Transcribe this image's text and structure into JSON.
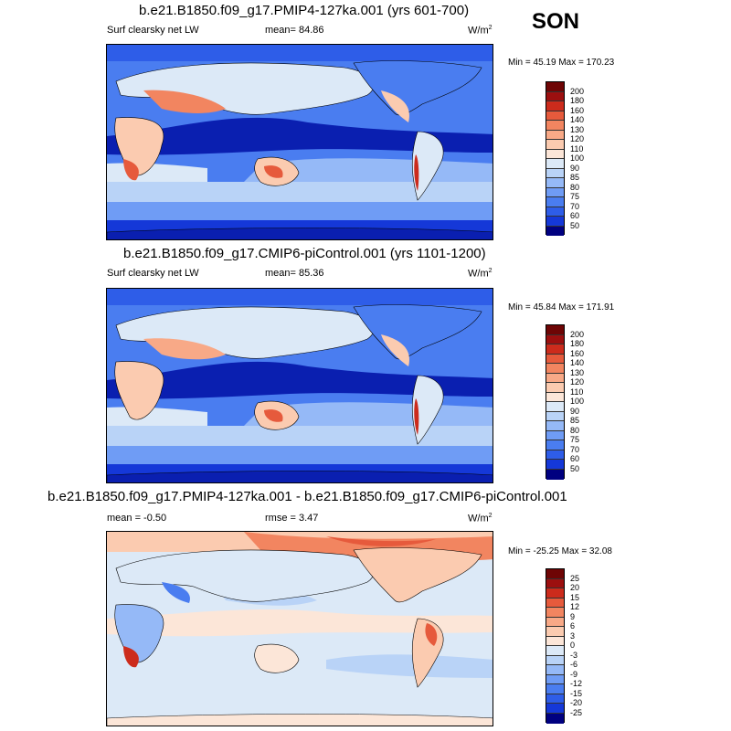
{
  "season": "SON",
  "colors": {
    "main_scale": [
      "#000080",
      "#0a1fb0",
      "#1538d8",
      "#2e5de8",
      "#4a7df0",
      "#6f9cf5",
      "#95b9f7",
      "#b9d3f7",
      "#dce9f7",
      "#fce6d8",
      "#fbcbb0",
      "#f8a987",
      "#f28560",
      "#e65a3c",
      "#cc2b1c",
      "#9c0f0f",
      "#6e0505"
    ],
    "diff_scale": [
      "#000080",
      "#0a1fb0",
      "#1538d8",
      "#2e5de8",
      "#4a7df0",
      "#6f9cf5",
      "#95b9f7",
      "#b9d3f7",
      "#dce9f7",
      "#fce6d8",
      "#fbcbb0",
      "#f8a987",
      "#f28560",
      "#e65a3c",
      "#cc2b1c",
      "#9c0f0f",
      "#6e0505"
    ]
  },
  "panels": [
    {
      "title": "b.e21.B1850.f09_g17.PMIP4-127ka.001 (yrs 601-700)",
      "left_label": "Surf clearsky net LW",
      "mean_label": "mean=  84.86",
      "units": "W/m",
      "units_sup": "2",
      "minmax": "Min =  45.19 Max = 170.23",
      "ticks": [
        "200",
        "180",
        "160",
        "140",
        "130",
        "120",
        "110",
        "100",
        "90",
        "85",
        "80",
        "75",
        "70",
        "60",
        "50"
      ]
    },
    {
      "title": "b.e21.B1850.f09_g17.CMIP6-piControl.001 (yrs 1101-1200)",
      "left_label": "Surf clearsky net LW",
      "mean_label": "mean=  85.36",
      "units": "W/m",
      "units_sup": "2",
      "minmax": "Min =  45.84 Max = 171.91",
      "ticks": [
        "200",
        "180",
        "160",
        "140",
        "130",
        "120",
        "110",
        "100",
        "90",
        "85",
        "80",
        "75",
        "70",
        "60",
        "50"
      ]
    },
    {
      "title": "b.e21.B1850.f09_g17.PMIP4-127ka.001 - b.e21.B1850.f09_g17.CMIP6-piControl.001",
      "left_label": "mean =  -0.50",
      "mean_label": "rmse =   3.47",
      "units": "W/m",
      "units_sup": "2",
      "minmax": "Min = -25.25 Max =  32.08",
      "ticks": [
        "25",
        "20",
        "15",
        "12",
        "9",
        "6",
        "3",
        "0",
        "-3",
        "-6",
        "-9",
        "-12",
        "-15",
        "-20",
        "-25"
      ]
    }
  ]
}
